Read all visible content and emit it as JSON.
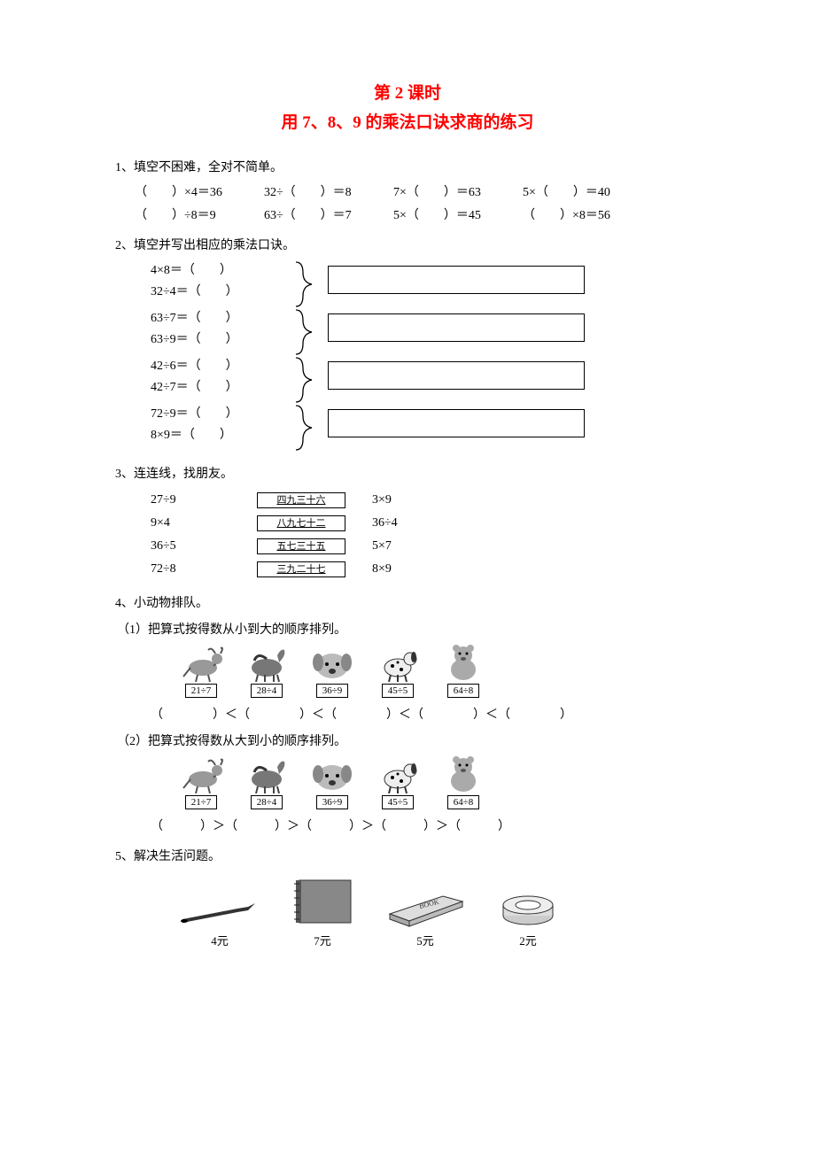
{
  "title": {
    "line1": "第 2 课时",
    "line2": "用 7、8、9 的乘法口诀求商的练习"
  },
  "q1": {
    "heading": "1、填空不困难，全对不简单。",
    "rows": [
      [
        "（　　）×4＝36",
        "32÷（　　）＝8",
        "7×（　　）＝63",
        "5×（　　）＝40"
      ],
      [
        "（　　）÷8＝9",
        "63÷（　　）＝7",
        "5×（　　）＝45",
        "（　　）×8＝56"
      ]
    ]
  },
  "q2": {
    "heading": "2、填空并写出相应的乘法口诀。",
    "groups": [
      {
        "a": "4×8＝（　　）",
        "b": "32÷4＝（　　）"
      },
      {
        "a": "63÷7＝（　　）",
        "b": "63÷9＝（　　）"
      },
      {
        "a": "42÷6＝（　　）",
        "b": "42÷7＝（　　）"
      },
      {
        "a": "72÷9＝（　　）",
        "b": "8×9＝（　　）"
      }
    ]
  },
  "q3": {
    "heading": "3、连连线，找朋友。",
    "rows": [
      {
        "left": "27÷9",
        "mid": "四九三十六",
        "right": "3×9"
      },
      {
        "left": "9×4",
        "mid": "八九七十二",
        "right": "36÷4"
      },
      {
        "left": "36÷5",
        "mid": "五七三十五",
        "right": "5×7"
      },
      {
        "left": "72÷8",
        "mid": "三九二十七",
        "right": "8×9"
      }
    ]
  },
  "q4": {
    "heading": "4、小动物排队。",
    "sub1": "（1）把算式按得数从小到大的顺序排列。",
    "sub2": "（2）把算式按得数从大到小的顺序排列。",
    "animals": [
      {
        "kind": "goat",
        "expr": "21÷7"
      },
      {
        "kind": "horse",
        "expr": "28÷4"
      },
      {
        "kind": "dog-face",
        "expr": "36÷9"
      },
      {
        "kind": "dalmatian",
        "expr": "45÷5"
      },
      {
        "kind": "bear",
        "expr": "64÷8"
      }
    ],
    "lt_row": "（　　　　）＜（　　　　）＜（　　　　）＜（　　　　）＜（　　　　）",
    "gt_row": "（　　　）＞（　　　）＞（　　　）＞（　　　）＞（　　　）"
  },
  "q5": {
    "heading": "5、解决生活问题。",
    "items": [
      {
        "name": "pen",
        "price": "4元"
      },
      {
        "name": "notebook",
        "price": "7元"
      },
      {
        "name": "book",
        "price": "5元"
      },
      {
        "name": "tape",
        "price": "2元"
      }
    ]
  },
  "style": {
    "title_color": "#ff0000",
    "text_color": "#000000",
    "bg_color": "#ffffff",
    "box_border": "#000000"
  }
}
